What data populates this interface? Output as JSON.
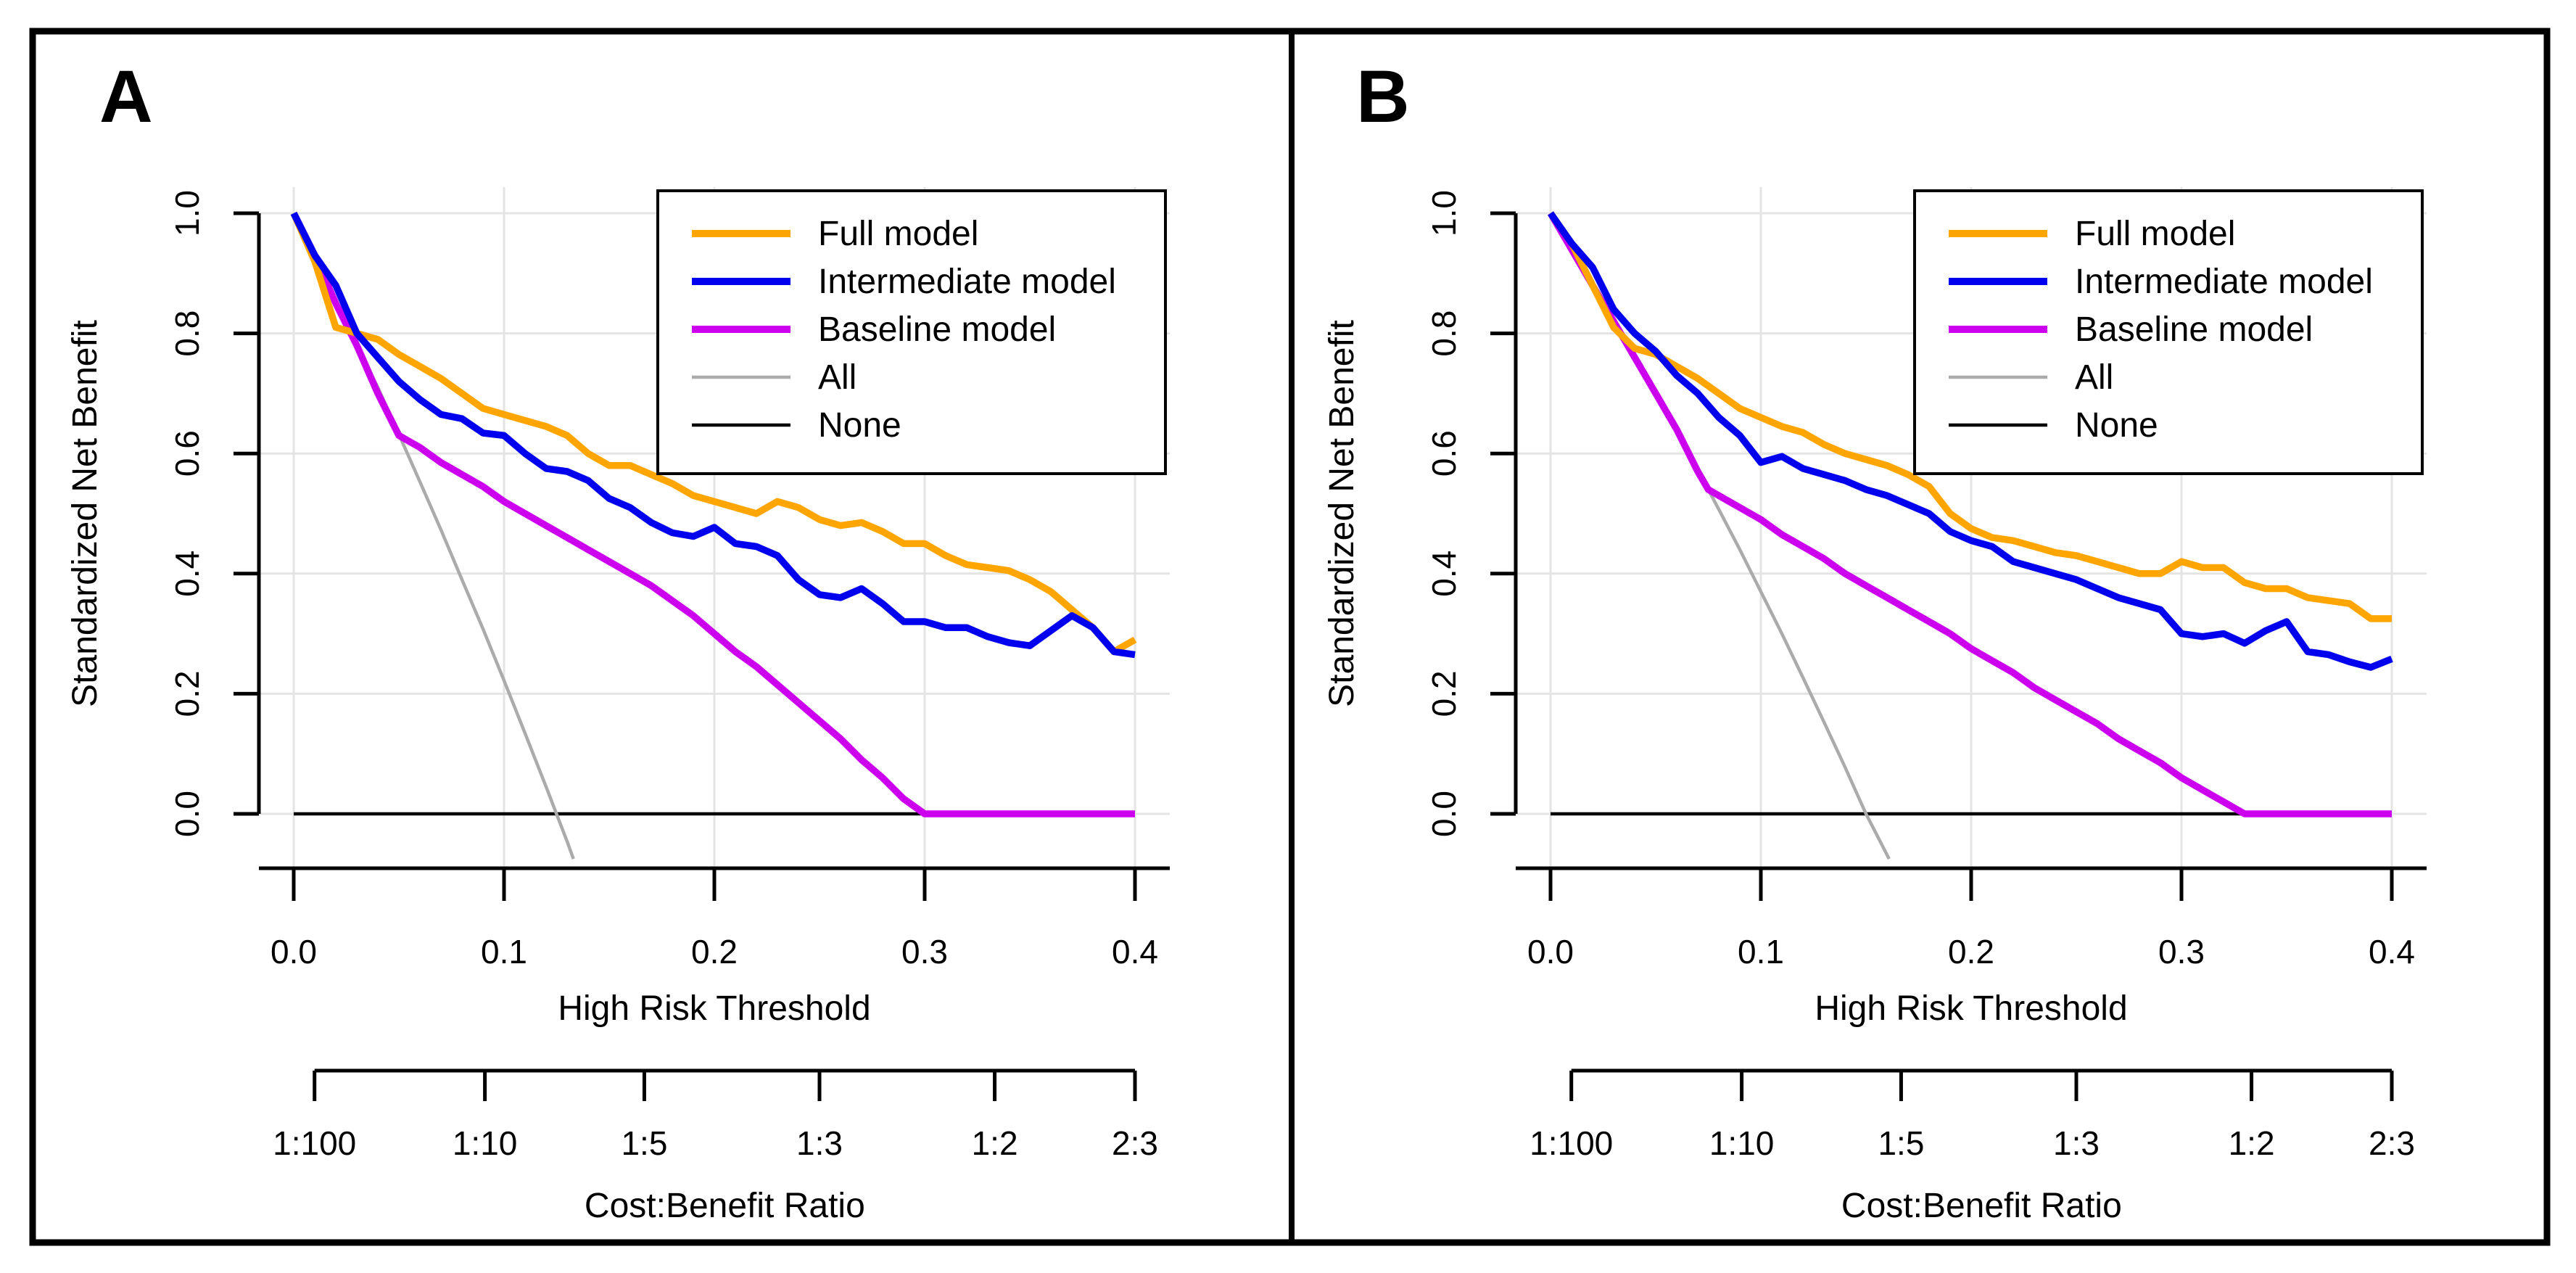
{
  "figure": {
    "background": "#FFFFFF",
    "frame_color": "#000000",
    "gridline_color": "#E4E4E4",
    "panel_labels": [
      "A",
      "B"
    ]
  },
  "chart_data": [
    {
      "type": "line",
      "panel_label": "A",
      "xlabel": "High Risk Threshold",
      "ylabel": "Standardized Net Benefit",
      "secondary_xlabel": "Cost:Benefit Ratio",
      "xlim": [
        0.0,
        0.4
      ],
      "ylim": [
        -0.09,
        1.0
      ],
      "grid": true,
      "legend_position": "top-right",
      "x_ticks": [
        0.0,
        0.1,
        0.2,
        0.3,
        0.4
      ],
      "x_tick_labels": [
        "0.0",
        "0.1",
        "0.2",
        "0.3",
        "0.4"
      ],
      "y_ticks": [
        0.0,
        0.2,
        0.4,
        0.6,
        0.8,
        1.0
      ],
      "y_tick_labels": [
        "0.0",
        "0.2",
        "0.4",
        "0.6",
        "0.8",
        "1.0"
      ],
      "cost_benefit_ticks": [
        {
          "label": "1:100",
          "at": 0.0099
        },
        {
          "label": "1:10",
          "at": 0.0909
        },
        {
          "label": "1:5",
          "at": 0.1667
        },
        {
          "label": "1:3",
          "at": 0.25
        },
        {
          "label": "1:2",
          "at": 0.3333
        },
        {
          "label": "2:3",
          "at": 0.4
        }
      ],
      "x": [
        0,
        0.01,
        0.02,
        0.03,
        0.04,
        0.05,
        0.06,
        0.07,
        0.08,
        0.09,
        0.1,
        0.11,
        0.12,
        0.13,
        0.14,
        0.15,
        0.16,
        0.17,
        0.18,
        0.19,
        0.2,
        0.21,
        0.22,
        0.23,
        0.24,
        0.25,
        0.26,
        0.27,
        0.28,
        0.29,
        0.3,
        0.31,
        0.32,
        0.33,
        0.34,
        0.35,
        0.36,
        0.37,
        0.38,
        0.39,
        0.4
      ],
      "series": [
        {
          "name": "Full model",
          "color": "#FFA500",
          "reference": false,
          "y": [
            1.0,
            0.92,
            0.81,
            0.8,
            0.79,
            0.765,
            0.745,
            0.725,
            0.7,
            0.675,
            0.665,
            0.655,
            0.645,
            0.63,
            0.6,
            0.58,
            0.58,
            0.565,
            0.55,
            0.53,
            0.52,
            0.51,
            0.5,
            0.52,
            0.51,
            0.49,
            0.48,
            0.485,
            0.47,
            0.45,
            0.45,
            0.43,
            0.415,
            0.41,
            0.405,
            0.39,
            0.37,
            0.34,
            0.31,
            0.27,
            0.29
          ]
        },
        {
          "name": "Intermediate model",
          "color": "#0000EE",
          "reference": false,
          "y": [
            1.0,
            0.93,
            0.88,
            0.8,
            0.76,
            0.72,
            0.69,
            0.665,
            0.658,
            0.634,
            0.63,
            0.6,
            0.575,
            0.57,
            0.555,
            0.525,
            0.51,
            0.485,
            0.468,
            0.462,
            0.477,
            0.45,
            0.445,
            0.43,
            0.39,
            0.365,
            0.36,
            0.375,
            0.35,
            0.32,
            0.32,
            0.31,
            0.31,
            0.295,
            0.285,
            0.28,
            0.305,
            0.33,
            0.31,
            0.27,
            0.265
          ]
        },
        {
          "name": "Baseline model",
          "color": "#CC00EE",
          "reference": false,
          "y": [
            1.0,
            0.93,
            0.85,
            0.78,
            0.7,
            0.63,
            0.61,
            0.585,
            0.565,
            0.545,
            0.52,
            0.5,
            0.48,
            0.46,
            0.44,
            0.42,
            0.4,
            0.38,
            0.355,
            0.33,
            0.3,
            0.27,
            0.245,
            0.215,
            0.185,
            0.155,
            0.125,
            0.09,
            0.06,
            0.025,
            0,
            0,
            0,
            0,
            0,
            0,
            0,
            0,
            0,
            0,
            0
          ]
        },
        {
          "name": "All",
          "color": "#ABABAB",
          "reference": true,
          "x": [
            0,
            0.01,
            0.02,
            0.03,
            0.04,
            0.05,
            0.06,
            0.07,
            0.08,
            0.09,
            0.1,
            0.11,
            0.12,
            0.13,
            0.133
          ],
          "y": [
            1.0,
            0.93,
            0.857,
            0.78,
            0.71,
            0.632,
            0.553,
            0.473,
            0.39,
            0.308,
            0.222,
            0.134,
            0.045,
            -0.046,
            -0.075
          ]
        },
        {
          "name": "None",
          "color": "#000000",
          "reference": true,
          "x": [
            0,
            0.4
          ],
          "y": [
            0,
            0
          ]
        }
      ]
    },
    {
      "type": "line",
      "panel_label": "B",
      "xlabel": "High Risk Threshold",
      "ylabel": "Standardized Net Benefit",
      "secondary_xlabel": "Cost:Benefit Ratio",
      "xlim": [
        0.0,
        0.4
      ],
      "ylim": [
        -0.09,
        1.0
      ],
      "grid": true,
      "legend_position": "top-right",
      "x_ticks": [
        0.0,
        0.1,
        0.2,
        0.3,
        0.4
      ],
      "x_tick_labels": [
        "0.0",
        "0.1",
        "0.2",
        "0.3",
        "0.4"
      ],
      "y_ticks": [
        0.0,
        0.2,
        0.4,
        0.6,
        0.8,
        1.0
      ],
      "y_tick_labels": [
        "0.0",
        "0.2",
        "0.4",
        "0.6",
        "0.8",
        "1.0"
      ],
      "cost_benefit_ticks": [
        {
          "label": "1:100",
          "at": 0.0099
        },
        {
          "label": "1:10",
          "at": 0.0909
        },
        {
          "label": "1:5",
          "at": 0.1667
        },
        {
          "label": "1:3",
          "at": 0.25
        },
        {
          "label": "1:2",
          "at": 0.3333
        },
        {
          "label": "2:3",
          "at": 0.4
        }
      ],
      "x": [
        0,
        0.01,
        0.02,
        0.03,
        0.04,
        0.05,
        0.06,
        0.07,
        0.08,
        0.09,
        0.1,
        0.11,
        0.12,
        0.13,
        0.14,
        0.15,
        0.16,
        0.17,
        0.18,
        0.19,
        0.2,
        0.21,
        0.22,
        0.23,
        0.24,
        0.25,
        0.26,
        0.27,
        0.28,
        0.29,
        0.3,
        0.31,
        0.32,
        0.33,
        0.34,
        0.35,
        0.36,
        0.37,
        0.38,
        0.39,
        0.4
      ],
      "series": [
        {
          "name": "Full model",
          "color": "#FFA500",
          "reference": false,
          "y": [
            1.0,
            0.95,
            0.88,
            0.81,
            0.775,
            0.765,
            0.745,
            0.725,
            0.7,
            0.675,
            0.66,
            0.645,
            0.635,
            0.615,
            0.6,
            0.59,
            0.58,
            0.565,
            0.545,
            0.5,
            0.475,
            0.46,
            0.455,
            0.445,
            0.435,
            0.43,
            0.42,
            0.41,
            0.4,
            0.4,
            0.42,
            0.41,
            0.41,
            0.385,
            0.375,
            0.375,
            0.36,
            0.355,
            0.35,
            0.325,
            0.325
          ]
        },
        {
          "name": "Intermediate model",
          "color": "#0000EE",
          "reference": false,
          "y": [
            1.0,
            0.95,
            0.91,
            0.84,
            0.8,
            0.77,
            0.73,
            0.7,
            0.66,
            0.63,
            0.585,
            0.595,
            0.575,
            0.565,
            0.555,
            0.54,
            0.53,
            0.515,
            0.5,
            0.47,
            0.455,
            0.445,
            0.42,
            0.41,
            0.4,
            0.39,
            0.375,
            0.36,
            0.35,
            0.34,
            0.3,
            0.295,
            0.3,
            0.284,
            0.305,
            0.32,
            0.27,
            0.265,
            0.253,
            0.244,
            0.258
          ]
        },
        {
          "name": "Baseline model",
          "color": "#CC00EE",
          "reference": false,
          "x": [
            0,
            0.01,
            0.02,
            0.03,
            0.04,
            0.05,
            0.06,
            0.07,
            0.075,
            0.08,
            0.09,
            0.1,
            0.11,
            0.12,
            0.13,
            0.14,
            0.15,
            0.16,
            0.17,
            0.18,
            0.19,
            0.2,
            0.21,
            0.22,
            0.23,
            0.24,
            0.25,
            0.26,
            0.27,
            0.28,
            0.29,
            0.3,
            0.31,
            0.32,
            0.33,
            0.34,
            0.35,
            0.36,
            0.37,
            0.38,
            0.39,
            0.4
          ],
          "y": [
            1.0,
            0.94,
            0.88,
            0.82,
            0.76,
            0.7,
            0.64,
            0.57,
            0.54,
            0.53,
            0.51,
            0.49,
            0.465,
            0.445,
            0.425,
            0.4,
            0.38,
            0.36,
            0.34,
            0.32,
            0.3,
            0.275,
            0.255,
            0.235,
            0.21,
            0.19,
            0.17,
            0.15,
            0.125,
            0.105,
            0.085,
            0.06,
            0.04,
            0.02,
            0,
            0,
            0,
            0,
            0,
            0,
            0,
            0
          ]
        },
        {
          "name": "All",
          "color": "#ABABAB",
          "reference": true,
          "x": [
            0,
            0.01,
            0.02,
            0.03,
            0.04,
            0.05,
            0.06,
            0.07,
            0.08,
            0.09,
            0.1,
            0.11,
            0.12,
            0.13,
            0.14,
            0.15,
            0.161
          ],
          "y": [
            1.0,
            0.943,
            0.884,
            0.824,
            0.763,
            0.7,
            0.638,
            0.573,
            0.507,
            0.44,
            0.37,
            0.3,
            0.227,
            0.153,
            0.078,
            0,
            -0.075
          ]
        },
        {
          "name": "None",
          "color": "#000000",
          "reference": true,
          "x": [
            0,
            0.4
          ],
          "y": [
            0,
            0
          ]
        }
      ]
    }
  ]
}
